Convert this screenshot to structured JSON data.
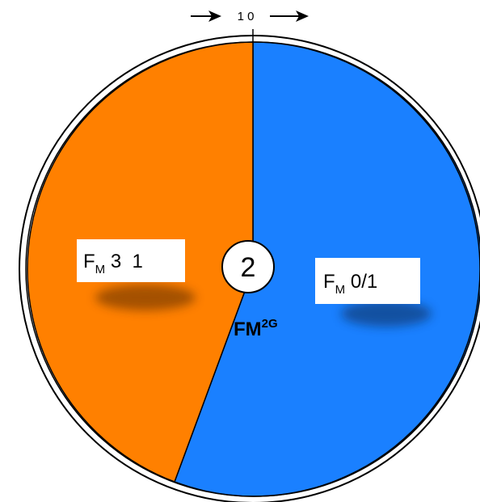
{
  "scale": {
    "top_label": "1 0"
  },
  "sectors": [
    {
      "id": "left",
      "color": "#FF8000",
      "label_main": "F",
      "label_sub": "M",
      "label_rest": " 3  1"
    },
    {
      "id": "right",
      "color": "#1A80FF",
      "label_main": "F",
      "label_sub": "M",
      "label_rest": " 0/1"
    }
  ],
  "center": {
    "number": "2",
    "fm_base": "FM",
    "fm_sup": "2G"
  }
}
